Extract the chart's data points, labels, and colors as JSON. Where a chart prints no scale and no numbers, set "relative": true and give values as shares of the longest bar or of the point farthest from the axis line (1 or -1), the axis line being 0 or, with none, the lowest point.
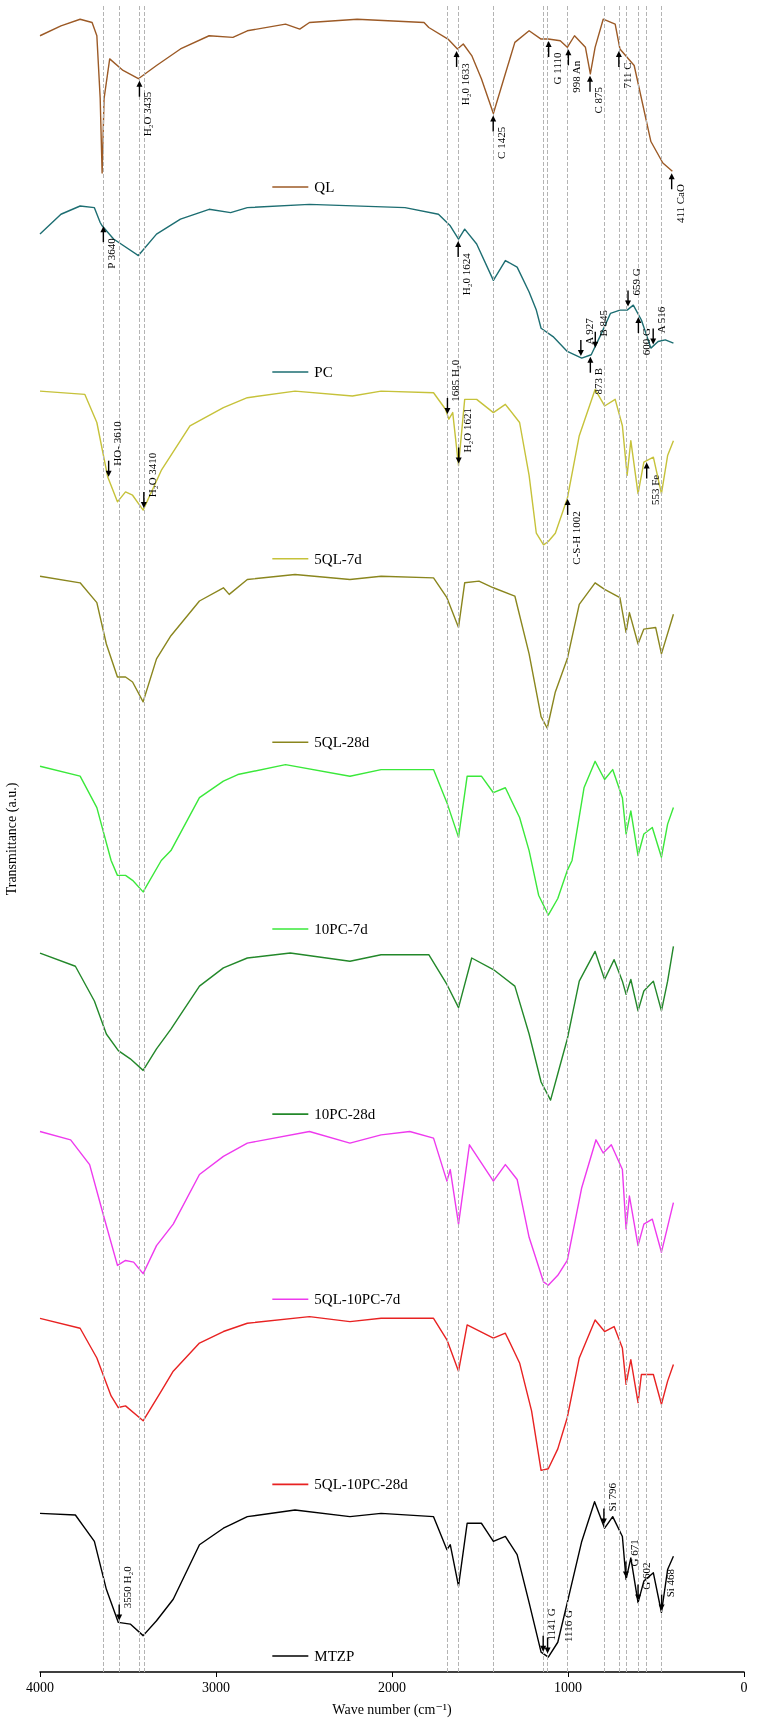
{
  "chart_data": {
    "type": "line",
    "relative": true,
    "legend": "center",
    "xlabel": "Wave number (cm⁻¹)",
    "ylabel": "Transmittance (a.u.)",
    "xlim": [
      4000,
      0
    ],
    "xticks": [
      4000,
      3000,
      2000,
      1000,
      0
    ],
    "series": [
      {
        "name": "QL",
        "color": "#9c5a26",
        "x": [
          4000,
          3881,
          3772,
          3704,
          3677,
          3658,
          3647,
          3636,
          3604,
          3528,
          3441,
          3338,
          3202,
          3039,
          2904,
          2822,
          2605,
          2524,
          2469,
          2198,
          1818,
          1791,
          1682,
          1628,
          1595,
          1547,
          1492,
          1424,
          1356,
          1302,
          1221,
          1153,
          1112,
          1044,
          1004,
          963,
          901,
          873,
          846,
          800,
          732,
          705,
          624,
          529,
          461,
          407
        ],
        "values": [
          0.99,
          0.996,
          1.0,
          0.998,
          0.99,
          0.952,
          0.907,
          0.952,
          0.976,
          0.969,
          0.964,
          0.972,
          0.982,
          0.99,
          0.989,
          0.993,
          0.997,
          0.994,
          0.998,
          1.0,
          0.998,
          0.995,
          0.988,
          0.982,
          0.985,
          0.978,
          0.964,
          0.943,
          0.967,
          0.986,
          0.993,
          0.988,
          0.988,
          0.987,
          0.983,
          0.99,
          0.983,
          0.967,
          0.983,
          1.0,
          0.997,
          0.982,
          0.972,
          0.926,
          0.913,
          0.908
        ]
      },
      {
        "name": "PC",
        "color": "#1d6e72",
        "x": [
          4000,
          3881,
          3772,
          3691,
          3658,
          3647,
          3582,
          3441,
          3338,
          3202,
          3039,
          2917,
          2822,
          2469,
          1926,
          1736,
          1669,
          1622,
          1587,
          1519,
          1424,
          1356,
          1289,
          1221,
          1180,
          1153,
          1085,
          1004,
          922,
          868,
          814,
          759,
          705,
          664,
          629,
          583,
          529,
          488,
          447,
          401
        ],
        "values": [
          0.87,
          0.882,
          0.887,
          0.886,
          0.877,
          0.875,
          0.867,
          0.857,
          0.87,
          0.879,
          0.885,
          0.883,
          0.886,
          0.888,
          0.886,
          0.882,
          0.875,
          0.867,
          0.873,
          0.864,
          0.842,
          0.854,
          0.85,
          0.835,
          0.824,
          0.813,
          0.808,
          0.799,
          0.795,
          0.797,
          0.809,
          0.822,
          0.824,
          0.824,
          0.827,
          0.818,
          0.801,
          0.805,
          0.806,
          0.804
        ]
      },
      {
        "name": "5QL-7d",
        "color": "#c6c23a",
        "x": [
          4000,
          3745,
          3677,
          3615,
          3560,
          3514,
          3474,
          3414,
          3311,
          3148,
          2958,
          2822,
          2551,
          2225,
          2062,
          1764,
          1696,
          1677,
          1655,
          1622,
          1587,
          1519,
          1424,
          1356,
          1275,
          1221,
          1180,
          1139,
          1112,
          1072,
          1004,
          936,
          846,
          792,
          732,
          691,
          664,
          643,
          602,
          569,
          515,
          469,
          434,
          401
        ],
        "values": [
          0.775,
          0.773,
          0.756,
          0.723,
          0.708,
          0.714,
          0.712,
          0.703,
          0.727,
          0.754,
          0.765,
          0.771,
          0.775,
          0.772,
          0.775,
          0.774,
          0.764,
          0.758,
          0.762,
          0.73,
          0.77,
          0.77,
          0.762,
          0.767,
          0.756,
          0.724,
          0.689,
          0.682,
          0.684,
          0.689,
          0.71,
          0.748,
          0.776,
          0.766,
          0.77,
          0.754,
          0.724,
          0.745,
          0.713,
          0.732,
          0.735,
          0.713,
          0.736,
          0.745
        ]
      },
      {
        "name": "5QL-28d",
        "color": "#8a861e",
        "x": [
          4000,
          3772,
          3677,
          3623,
          3560,
          3514,
          3474,
          3414,
          3338,
          3256,
          3094,
          2958,
          2925,
          2822,
          2551,
          2239,
          2062,
          1764,
          1688,
          1622,
          1587,
          1506,
          1424,
          1302,
          1221,
          1153,
          1118,
          1072,
          1004,
          936,
          846,
          792,
          705,
          670,
          651,
          602,
          569,
          502,
          469,
          401
        ],
        "values": [
          0.663,
          0.659,
          0.647,
          0.622,
          0.602,
          0.602,
          0.599,
          0.587,
          0.613,
          0.627,
          0.648,
          0.656,
          0.652,
          0.661,
          0.664,
          0.661,
          0.663,
          0.662,
          0.65,
          0.632,
          0.659,
          0.66,
          0.656,
          0.651,
          0.616,
          0.578,
          0.571,
          0.593,
          0.613,
          0.646,
          0.659,
          0.655,
          0.65,
          0.629,
          0.641,
          0.622,
          0.631,
          0.632,
          0.616,
          0.64
        ]
      },
      {
        "name": "10PC-7d",
        "color": "#3ae83a",
        "x": [
          4000,
          3772,
          3677,
          3596,
          3560,
          3514,
          3474,
          3414,
          3311,
          3256,
          3094,
          2958,
          2876,
          2605,
          2239,
          2062,
          1764,
          1688,
          1622,
          1573,
          1492,
          1424,
          1356,
          1275,
          1221,
          1167,
          1112,
          1058,
          1004,
          977,
          909,
          846,
          792,
          746,
          691,
          670,
          643,
          602,
          569,
          521,
          469,
          434,
          401
        ],
        "values": [
          0.548,
          0.542,
          0.523,
          0.491,
          0.482,
          0.482,
          0.479,
          0.472,
          0.491,
          0.497,
          0.529,
          0.539,
          0.543,
          0.549,
          0.542,
          0.546,
          0.546,
          0.526,
          0.505,
          0.542,
          0.542,
          0.532,
          0.535,
          0.517,
          0.497,
          0.47,
          0.458,
          0.468,
          0.485,
          0.491,
          0.535,
          0.551,
          0.54,
          0.546,
          0.529,
          0.507,
          0.521,
          0.494,
          0.507,
          0.511,
          0.493,
          0.513,
          0.523
        ]
      },
      {
        "name": "10PC-28d",
        "color": "#23882a",
        "x": [
          4000,
          3799,
          3691,
          3623,
          3555,
          3487,
          3414,
          3338,
          3256,
          3094,
          2958,
          2822,
          2578,
          2239,
          2062,
          1791,
          1688,
          1622,
          1547,
          1424,
          1302,
          1221,
          1153,
          1099,
          1058,
          1004,
          936,
          846,
          792,
          738,
          691,
          670,
          643,
          602,
          569,
          515,
          469,
          434,
          401
        ],
        "values": [
          0.435,
          0.427,
          0.406,
          0.386,
          0.376,
          0.371,
          0.364,
          0.377,
          0.389,
          0.415,
          0.426,
          0.432,
          0.435,
          0.43,
          0.434,
          0.434,
          0.416,
          0.402,
          0.432,
          0.425,
          0.415,
          0.386,
          0.357,
          0.346,
          0.362,
          0.383,
          0.418,
          0.436,
          0.419,
          0.431,
          0.418,
          0.41,
          0.419,
          0.4,
          0.412,
          0.418,
          0.4,
          0.418,
          0.439
        ]
      },
      {
        "name": "5QL-10PC-7d",
        "color": "#ee3aee",
        "x": [
          4000,
          3826,
          3718,
          3636,
          3560,
          3514,
          3468,
          3414,
          3338,
          3243,
          3094,
          2958,
          2822,
          2469,
          2239,
          2062,
          1899,
          1764,
          1688,
          1669,
          1622,
          1560,
          1424,
          1356,
          1289,
          1221,
          1139,
          1112,
          1058,
          1004,
          922,
          841,
          800,
          754,
          691,
          670,
          651,
          602,
          569,
          521,
          469,
          401
        ],
        "values": [
          0.327,
          0.322,
          0.307,
          0.275,
          0.246,
          0.249,
          0.248,
          0.241,
          0.258,
          0.271,
          0.301,
          0.312,
          0.32,
          0.327,
          0.32,
          0.325,
          0.327,
          0.323,
          0.297,
          0.304,
          0.271,
          0.319,
          0.297,
          0.307,
          0.298,
          0.263,
          0.236,
          0.234,
          0.24,
          0.249,
          0.293,
          0.322,
          0.314,
          0.319,
          0.304,
          0.268,
          0.288,
          0.258,
          0.271,
          0.274,
          0.254,
          0.284
        ]
      },
      {
        "name": "5QL-10PC-28d",
        "color": "#e82222",
        "x": [
          4000,
          3772,
          3677,
          3596,
          3555,
          3514,
          3414,
          3311,
          3243,
          3094,
          2958,
          2822,
          2469,
          2239,
          2062,
          1764,
          1688,
          1622,
          1573,
          1424,
          1356,
          1275,
          1207,
          1153,
          1112,
          1058,
          1004,
          936,
          846,
          792,
          738,
          691,
          670,
          643,
          602,
          583,
          515,
          469,
          434,
          401
        ],
        "values": [
          0.214,
          0.208,
          0.19,
          0.167,
          0.16,
          0.161,
          0.152,
          0.17,
          0.182,
          0.199,
          0.206,
          0.211,
          0.215,
          0.212,
          0.214,
          0.214,
          0.201,
          0.182,
          0.21,
          0.202,
          0.205,
          0.187,
          0.158,
          0.122,
          0.123,
          0.135,
          0.154,
          0.19,
          0.213,
          0.206,
          0.209,
          0.196,
          0.174,
          0.189,
          0.163,
          0.18,
          0.18,
          0.162,
          0.176,
          0.186
        ]
      },
      {
        "name": "MTZP",
        "color": "#000000",
        "x": [
          4000,
          3799,
          3691,
          3623,
          3555,
          3487,
          3414,
          3338,
          3243,
          3094,
          2958,
          2822,
          2551,
          2239,
          2062,
          1764,
          1688,
          1669,
          1622,
          1573,
          1492,
          1424,
          1356,
          1289,
          1221,
          1153,
          1112,
          1058,
          1004,
          922,
          849,
          792,
          746,
          691,
          670,
          643,
          602,
          569,
          515,
          469,
          434,
          401
        ],
        "values": [
          0.096,
          0.095,
          0.079,
          0.05,
          0.03,
          0.029,
          0.022,
          0.031,
          0.044,
          0.077,
          0.087,
          0.094,
          0.098,
          0.094,
          0.096,
          0.094,
          0.074,
          0.077,
          0.052,
          0.09,
          0.09,
          0.079,
          0.082,
          0.071,
          0.042,
          0.012,
          0.009,
          0.018,
          0.042,
          0.079,
          0.103,
          0.087,
          0.094,
          0.082,
          0.056,
          0.069,
          0.042,
          0.055,
          0.06,
          0.036,
          0.062,
          0.07
        ]
      }
    ],
    "annotations": [
      {
        "text": "H₂O 3435",
        "x": 3435,
        "y": 0.964
      },
      {
        "text": "H₂0 1633",
        "x": 1633,
        "y": 0.982
      },
      {
        "text": "C 1425",
        "x": 1425,
        "y": 0.943
      },
      {
        "text": "G 1110",
        "x": 1110,
        "y": 0.988
      },
      {
        "text": "998 An",
        "x": 998,
        "y": 0.983
      },
      {
        "text": "C 875",
        "x": 875,
        "y": 0.967
      },
      {
        "text": "711 C",
        "x": 711,
        "y": 0.982
      },
      {
        "text": "411 CaO",
        "x": 411,
        "y": 0.908
      },
      {
        "text": "P 3640",
        "x": 3640,
        "y": 0.876
      },
      {
        "text": "H₂0 1624",
        "x": 1624,
        "y": 0.867
      },
      {
        "text": "A 927",
        "x": 927,
        "y": 0.795
      },
      {
        "text": "873 B",
        "x": 873,
        "y": 0.797
      },
      {
        "text": "B 845",
        "x": 845,
        "y": 0.8
      },
      {
        "text": "659 G",
        "x": 659,
        "y": 0.825
      },
      {
        "text": "600 G",
        "x": 600,
        "y": 0.821
      },
      {
        "text": "A 516",
        "x": 516,
        "y": 0.802
      },
      {
        "text": "HO- 3610",
        "x": 3610,
        "y": 0.722
      },
      {
        "text": "H₂O 3410",
        "x": 3410,
        "y": 0.703
      },
      {
        "text": "1685 H₂0",
        "x": 1685,
        "y": 0.76
      },
      {
        "text": "H₂O 1621",
        "x": 1621,
        "y": 0.73
      },
      {
        "text": "C-S-H 1002",
        "x": 1002,
        "y": 0.711
      },
      {
        "text": "553 Fe",
        "x": 553,
        "y": 0.733
      },
      {
        "text": "3550 H₂0",
        "x": 3550,
        "y": 0.03
      },
      {
        "text": "1141 G",
        "x": 1141,
        "y": 0.011
      },
      {
        "text": "1116 G",
        "x": 1116,
        "y": 0.01
      },
      {
        "text": "Si 796",
        "x": 796,
        "y": 0.088
      },
      {
        "text": "G 671",
        "x": 671,
        "y": 0.056
      },
      {
        "text": "G 602",
        "x": 602,
        "y": 0.042
      },
      {
        "text": "Si 468",
        "x": 468,
        "y": 0.036
      }
    ],
    "ref_lines": [
      {
        "axis": "x",
        "value": 3640,
        "color": "#b4b4b4",
        "line_style": "dashed"
      },
      {
        "axis": "x",
        "value": 3550,
        "color": "#b4b4b4",
        "line_style": "dashed"
      },
      {
        "axis": "x",
        "value": 3435,
        "color": "#b4b4b4",
        "line_style": "dashed"
      },
      {
        "axis": "x",
        "value": 3410,
        "color": "#b4b4b4",
        "line_style": "dashed"
      },
      {
        "axis": "x",
        "value": 1685,
        "color": "#b4b4b4",
        "line_style": "dashed"
      },
      {
        "axis": "x",
        "value": 1621,
        "color": "#b4b4b4",
        "line_style": "dashed"
      },
      {
        "axis": "x",
        "value": 1425,
        "color": "#b4b4b4",
        "line_style": "dashed"
      },
      {
        "axis": "x",
        "value": 1141,
        "color": "#b4b4b4",
        "line_style": "dashed"
      },
      {
        "axis": "x",
        "value": 1116,
        "color": "#b4b4b4",
        "line_style": "dashed"
      },
      {
        "axis": "x",
        "value": 1002,
        "color": "#b4b4b4",
        "line_style": "dashed"
      },
      {
        "axis": "x",
        "value": 796,
        "color": "#b4b4b4",
        "line_style": "dashed"
      },
      {
        "axis": "x",
        "value": 711,
        "color": "#b4b4b4",
        "line_style": "dashed"
      },
      {
        "axis": "x",
        "value": 671,
        "color": "#b4b4b4",
        "line_style": "dashed"
      },
      {
        "axis": "x",
        "value": 602,
        "color": "#b4b4b4",
        "line_style": "dashed"
      },
      {
        "axis": "x",
        "value": 553,
        "color": "#b4b4b4",
        "line_style": "dashed"
      },
      {
        "axis": "x",
        "value": 468,
        "color": "#b4b4b4",
        "line_style": "dashed"
      }
    ]
  }
}
